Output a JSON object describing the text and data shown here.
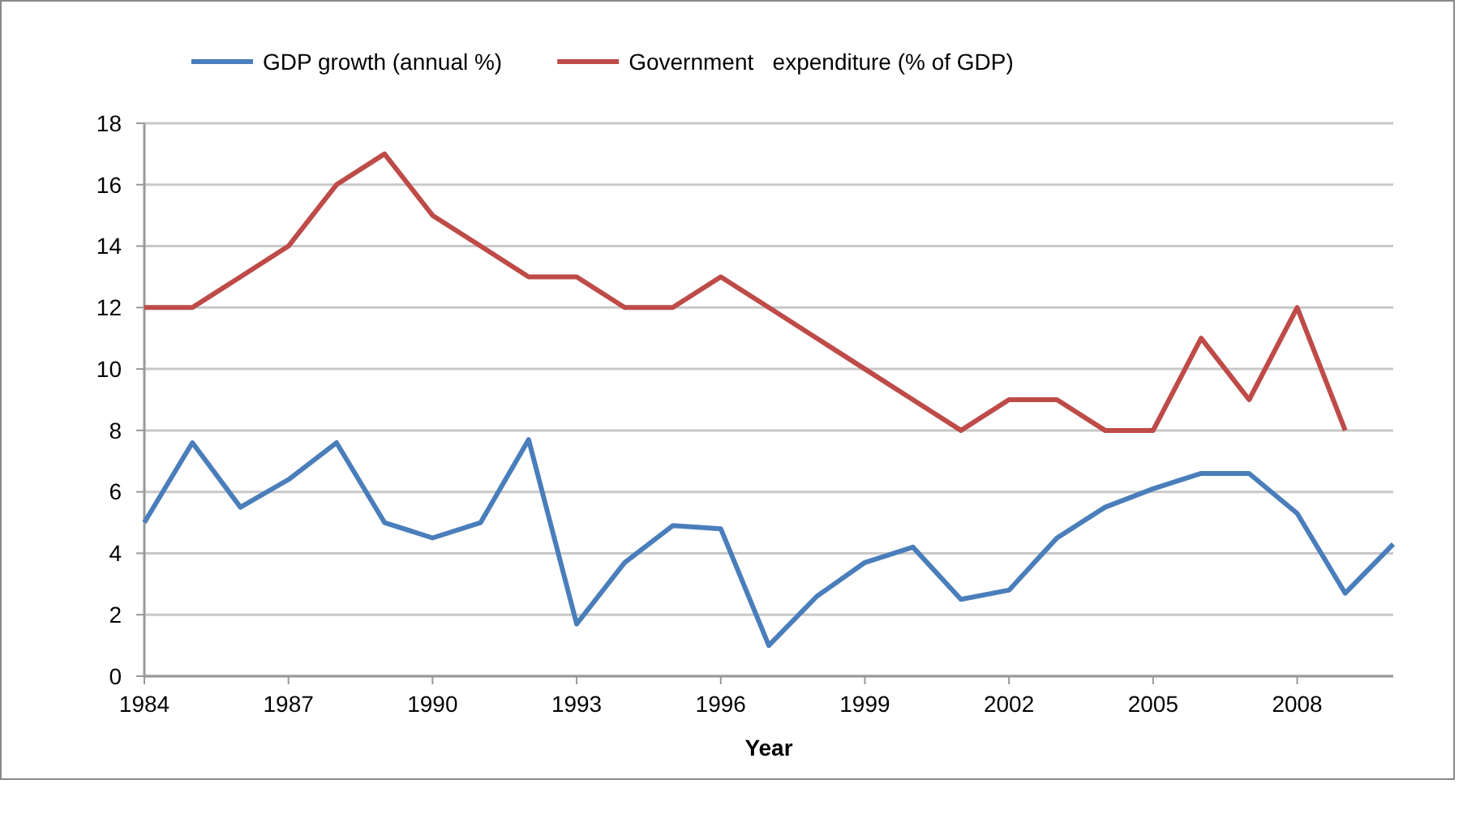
{
  "chart_data": {
    "type": "line",
    "xlabel": "Year",
    "x": [
      1984,
      1985,
      1986,
      1987,
      1988,
      1989,
      1990,
      1991,
      1992,
      1993,
      1994,
      1995,
      1996,
      1997,
      1998,
      1999,
      2000,
      2001,
      2002,
      2003,
      2004,
      2005,
      2006,
      2007,
      2008,
      2009,
      2010
    ],
    "series": [
      {
        "name": "GDP growth (annual %)",
        "color": "#4a7ebb",
        "values": [
          5.0,
          7.6,
          5.5,
          6.4,
          7.6,
          5.0,
          4.5,
          5.0,
          7.7,
          1.7,
          3.7,
          4.9,
          4.8,
          1.0,
          2.6,
          3.7,
          4.2,
          2.5,
          2.8,
          4.5,
          5.5,
          6.1,
          6.6,
          6.6,
          5.3,
          2.7,
          4.3
        ]
      },
      {
        "name": "Government   expenditure (% of GDP)",
        "color": "#be4b48",
        "values": [
          12,
          12,
          13,
          14,
          16,
          17,
          15,
          14,
          13,
          13,
          12,
          12,
          13,
          12,
          11,
          10,
          9,
          8,
          9,
          9,
          8,
          8,
          11,
          9,
          12,
          8,
          null
        ]
      }
    ],
    "xlim": [
      1984,
      2010
    ],
    "xticks": [
      1984,
      1987,
      1990,
      1993,
      1996,
      1999,
      2002,
      2005,
      2008
    ],
    "ylim": [
      0,
      18
    ],
    "yticks": [
      0,
      2,
      4,
      6,
      8,
      10,
      12,
      14,
      16,
      18
    ],
    "grid": "y",
    "legend": "top",
    "marker": "none",
    "line_style": "solid"
  }
}
